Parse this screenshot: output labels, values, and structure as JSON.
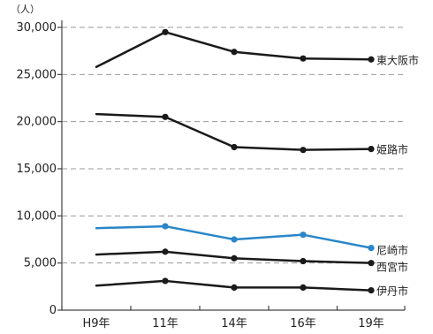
{
  "chart_data": {
    "type": "line",
    "unit_label": "（人）",
    "categories": [
      "H9年",
      "11年",
      "14年",
      "16年",
      "19年"
    ],
    "ylim": [
      0,
      30000
    ],
    "yticks": [
      0,
      5000,
      10000,
      15000,
      20000,
      25000,
      30000
    ],
    "ytick_labels": [
      "0",
      "5,000",
      "10,000",
      "15,000",
      "20,000",
      "25,000",
      "30,000"
    ],
    "grid": true,
    "series": [
      {
        "name": "東大阪市",
        "color": "#1a1a1a",
        "values": [
          25800,
          29500,
          27400,
          26700,
          26600
        ]
      },
      {
        "name": "姫路市",
        "color": "#1a1a1a",
        "values": [
          20800,
          20500,
          17300,
          17000,
          17100
        ]
      },
      {
        "name": "尼崎市",
        "color": "#2a86c8",
        "values": [
          8700,
          8900,
          7500,
          8000,
          6600
        ]
      },
      {
        "name": "西宮市",
        "color": "#1a1a1a",
        "values": [
          5900,
          6200,
          5500,
          5200,
          5000
        ]
      },
      {
        "name": "伊丹市",
        "color": "#1a1a1a",
        "values": [
          2600,
          3100,
          2400,
          2400,
          2100
        ]
      }
    ]
  }
}
